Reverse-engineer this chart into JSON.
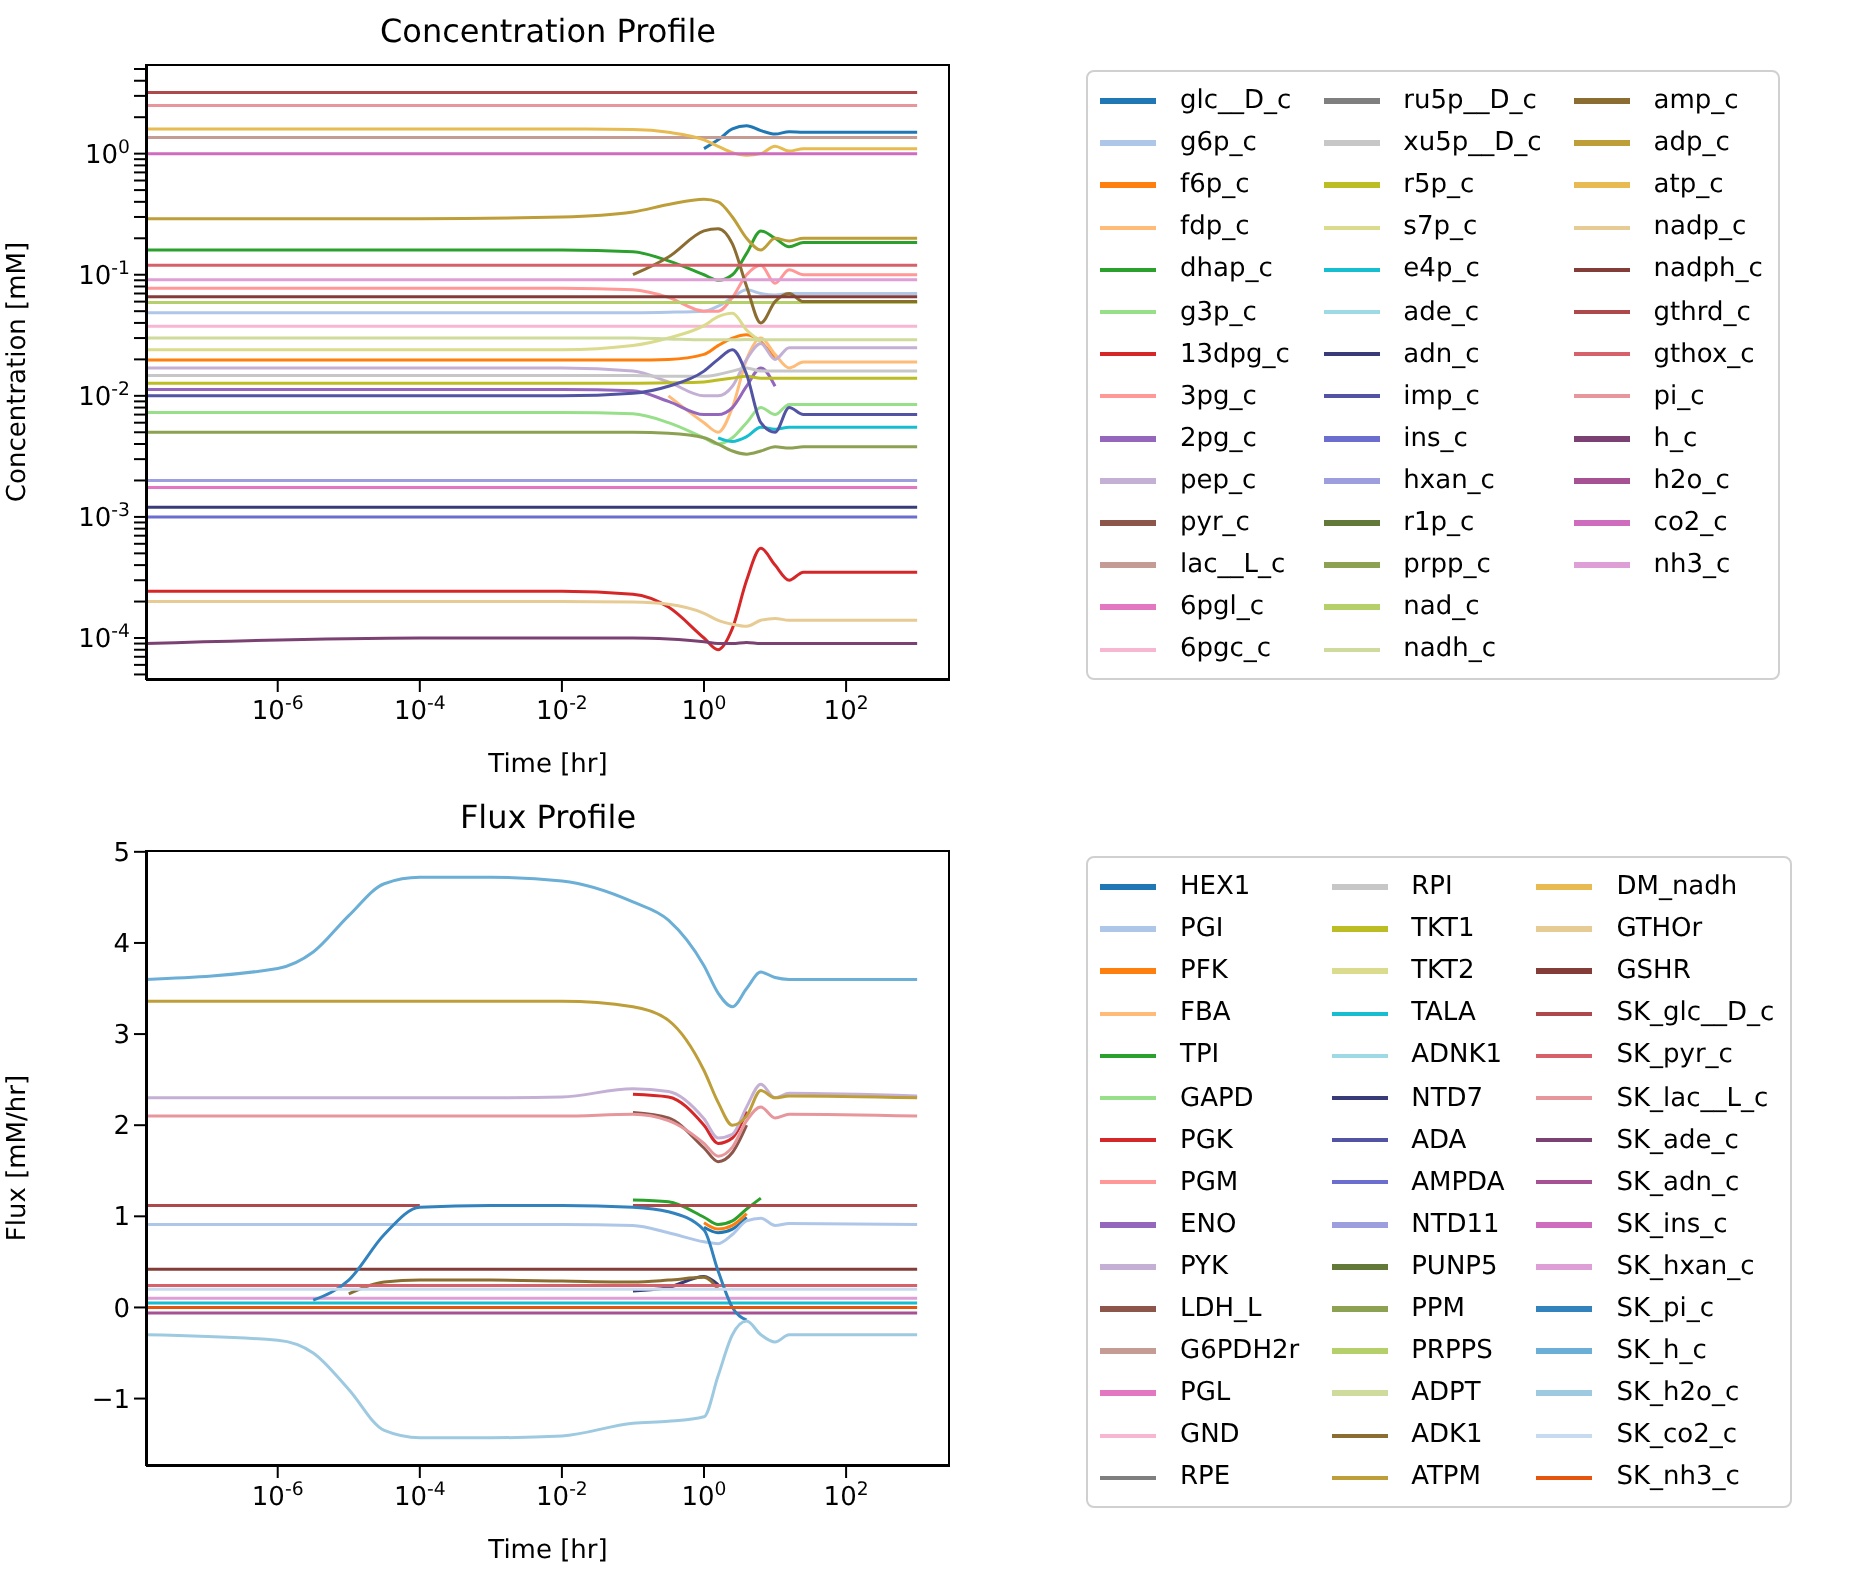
{
  "chart_data": [
    {
      "type": "line",
      "title": "Concentration Profile",
      "xlabel": "Time [hr]",
      "ylabel": "Concentration [mM]",
      "log": "xy",
      "legend": "right",
      "xlim": [
        1.4e-08,
        2900
      ],
      "xticks": [
        {
          "value": 1e-06,
          "label": "10$^{-6}$"
        },
        {
          "value": 0.0001,
          "label": "10$^{-4}$"
        },
        {
          "value": 0.01,
          "label": "10$^{-2}$"
        },
        {
          "value": 1,
          "label": "10$^{0}$"
        },
        {
          "value": 100,
          "label": "10$^{2}$"
        }
      ],
      "ylim": [
        4.5e-05,
        5.5
      ],
      "yticks": [
        {
          "value": 5e-05,
          "label": null
        },
        {
          "value": 6e-05,
          "label": null
        },
        {
          "value": 7e-05,
          "label": null
        },
        {
          "value": 8e-05,
          "label": null
        },
        {
          "value": 9e-05,
          "label": null
        },
        {
          "value": 0.0001,
          "label": "10$^{-4}$"
        },
        {
          "value": 0.0002,
          "label": null
        },
        {
          "value": 0.0003,
          "label": null
        },
        {
          "value": 0.0004,
          "label": null
        },
        {
          "value": 0.0005,
          "label": null
        },
        {
          "value": 0.0006,
          "label": null
        },
        {
          "value": 0.0007,
          "label": null
        },
        {
          "value": 0.0008,
          "label": null
        },
        {
          "value": 0.0009,
          "label": null
        },
        {
          "value": 0.001,
          "label": "10$^{-3}$"
        },
        {
          "value": 0.002,
          "label": null
        },
        {
          "value": 0.003,
          "label": null
        },
        {
          "value": 0.004,
          "label": null
        },
        {
          "value": 0.005,
          "label": null
        },
        {
          "value": 0.006,
          "label": null
        },
        {
          "value": 0.007,
          "label": null
        },
        {
          "value": 0.008,
          "label": null
        },
        {
          "value": 0.009,
          "label": null
        },
        {
          "value": 0.01,
          "label": "10$^{-2}$"
        },
        {
          "value": 0.02,
          "label": null
        },
        {
          "value": 0.03,
          "label": null
        },
        {
          "value": 0.04,
          "label": null
        },
        {
          "value": 0.05,
          "label": null
        },
        {
          "value": 0.06,
          "label": null
        },
        {
          "value": 0.07,
          "label": null
        },
        {
          "value": 0.08,
          "label": null
        },
        {
          "value": 0.09,
          "label": null
        },
        {
          "value": 0.1,
          "label": "10$^{-1}$"
        },
        {
          "value": 0.2,
          "label": null
        },
        {
          "value": 0.3,
          "label": null
        },
        {
          "value": 0.4,
          "label": null
        },
        {
          "value": 0.5,
          "label": null
        },
        {
          "value": 0.6,
          "label": null
        },
        {
          "value": 0.7,
          "label": null
        },
        {
          "value": 0.8,
          "label": null
        },
        {
          "value": 0.9,
          "label": null
        },
        {
          "value": 1,
          "label": "10$^{0}$"
        },
        {
          "value": 2,
          "label": null
        },
        {
          "value": 3,
          "label": null
        },
        {
          "value": 4,
          "label": null
        },
        {
          "value": 5,
          "label": null
        }
      ],
      "x": [
        1.4e-08,
        0.0001,
        0.01,
        0.1,
        0.316,
        1,
        1.58,
        2.51,
        3.98,
        6.31,
        10,
        15.8,
        25.1,
        1000
      ],
      "series": [
        {
          "name": "glc__D_c",
          "color": "#1f77b4",
          "values": [
            null,
            null,
            null,
            null,
            null,
            1.1,
            1.3,
            1.6,
            1.7,
            1.55,
            1.45,
            1.52,
            1.5,
            1.5
          ]
        },
        {
          "name": "g6p_c",
          "color": "#aec7e8",
          "values": [
            0.0486,
            0.0486,
            0.0486,
            0.0486,
            0.049,
            0.05,
            0.055,
            0.065,
            0.075,
            0.07,
            0.068,
            0.07,
            0.07,
            0.07
          ]
        },
        {
          "name": "f6p_c",
          "color": "#ff7f0e",
          "values": [
            0.0198,
            0.0198,
            0.0198,
            0.0198,
            0.02,
            0.022,
            0.026,
            0.03,
            0.032,
            0.028,
            0.02,
            null,
            null,
            null
          ]
        },
        {
          "name": "fdp_c",
          "color": "#ffbb78",
          "values": [
            null,
            null,
            null,
            null,
            0.01,
            0.006,
            0.005,
            0.008,
            0.02,
            0.03,
            0.022,
            0.017,
            0.019,
            0.019
          ]
        },
        {
          "name": "dhap_c",
          "color": "#2ca02c",
          "values": [
            0.16,
            0.16,
            0.16,
            0.155,
            0.13,
            0.1,
            0.09,
            0.1,
            0.15,
            0.23,
            0.2,
            0.17,
            0.185,
            0.185
          ]
        },
        {
          "name": "g3p_c",
          "color": "#98df8a",
          "values": [
            0.0073,
            0.0073,
            0.0073,
            0.0071,
            0.006,
            0.0045,
            0.004,
            0.0045,
            0.006,
            0.008,
            0.007,
            0.0085,
            0.0085,
            0.0085
          ]
        },
        {
          "name": "13dpg_c",
          "color": "#d62728",
          "values": [
            0.000243,
            0.000243,
            0.000243,
            0.00023,
            0.00018,
            0.0001,
            8e-05,
            0.00012,
            0.0003,
            0.00055,
            0.0004,
            0.0003,
            0.00035,
            0.00035
          ]
        },
        {
          "name": "3pg_c",
          "color": "#ff9896",
          "values": [
            0.0773,
            0.0773,
            0.0773,
            0.075,
            0.065,
            0.05,
            0.05,
            0.065,
            0.1,
            0.12,
            0.085,
            0.11,
            0.1,
            0.1
          ]
        },
        {
          "name": "2pg_c",
          "color": "#9467bd",
          "values": [
            0.0113,
            0.0113,
            0.0113,
            0.011,
            0.009,
            0.007,
            0.007,
            0.008,
            0.012,
            0.017,
            0.012,
            null,
            null,
            null
          ]
        },
        {
          "name": "pep_c",
          "color": "#c5b0d5",
          "values": [
            0.017,
            0.017,
            0.017,
            0.016,
            0.013,
            0.01,
            0.01,
            0.012,
            0.02,
            0.027,
            0.02,
            0.025,
            0.025,
            0.025
          ]
        },
        {
          "name": "pyr_c",
          "color": "#8c564b",
          "values": [
            null,
            null,
            null,
            null,
            null,
            null,
            null,
            null,
            null,
            null,
            null,
            null,
            null,
            null
          ]
        },
        {
          "name": "lac__L_c",
          "color": "#c49c94",
          "values": [
            1.36,
            1.36,
            1.36,
            1.36,
            1.36,
            1.36,
            1.36,
            1.36,
            1.36,
            1.36,
            1.36,
            1.36,
            1.36,
            1.36
          ]
        },
        {
          "name": "6pgl_c",
          "color": "#e377c2",
          "values": [
            0.00175,
            0.00175,
            0.00175,
            0.00175,
            0.00175,
            0.00175,
            0.00175,
            0.00175,
            0.00175,
            0.00175,
            0.00175,
            0.00175,
            0.00175,
            0.00175
          ]
        },
        {
          "name": "6pgc_c",
          "color": "#f7b6d2",
          "values": [
            0.0375,
            0.0375,
            0.0375,
            0.0375,
            0.0375,
            0.0375,
            0.0375,
            0.0375,
            0.0375,
            0.0375,
            0.0375,
            0.0375,
            0.0375,
            0.0375
          ]
        },
        {
          "name": "ru5p__D_c",
          "color": "#7f7f7f",
          "values": [
            null,
            null,
            null,
            null,
            null,
            null,
            null,
            null,
            null,
            null,
            null,
            null,
            null,
            null
          ]
        },
        {
          "name": "xu5p__D_c",
          "color": "#c7c7c7",
          "values": [
            0.0147,
            0.0147,
            0.0147,
            0.0147,
            0.0145,
            0.0145,
            0.015,
            0.016,
            0.017,
            0.016,
            0.016,
            0.016,
            0.016,
            0.016
          ]
        },
        {
          "name": "r5p_c",
          "color": "#bcbd22",
          "values": [
            0.0127,
            0.0127,
            0.0127,
            0.0127,
            0.0128,
            0.013,
            0.0135,
            0.014,
            0.0145,
            0.014,
            0.014,
            0.014,
            0.014,
            0.014
          ]
        },
        {
          "name": "s7p_c",
          "color": "#dbdb8d",
          "values": [
            0.024,
            0.024,
            0.024,
            0.026,
            0.03,
            0.038,
            0.045,
            0.048,
            0.035,
            0.028,
            null,
            null,
            null,
            null
          ]
        },
        {
          "name": "e4p_c",
          "color": "#17becf",
          "values": [
            null,
            null,
            null,
            null,
            null,
            null,
            0.0045,
            0.0042,
            0.0046,
            0.0055,
            0.0053,
            0.0055,
            0.0055,
            0.0055
          ]
        },
        {
          "name": "ade_c",
          "color": "#9edae5",
          "values": [
            null,
            null,
            null,
            null,
            null,
            null,
            null,
            null,
            null,
            null,
            null,
            null,
            null,
            null
          ]
        },
        {
          "name": "adn_c",
          "color": "#393b79",
          "values": [
            0.0012,
            0.0012,
            0.0012,
            0.0012,
            0.0012,
            0.0012,
            0.0012,
            0.0012,
            0.0012,
            0.0012,
            0.0012,
            0.0012,
            0.0012,
            0.0012
          ]
        },
        {
          "name": "imp_c",
          "color": "#5254a3",
          "values": [
            0.01,
            0.01,
            0.01,
            0.0105,
            0.012,
            0.016,
            0.02,
            0.024,
            0.015,
            0.006,
            0.005,
            0.008,
            0.007,
            0.007
          ]
        },
        {
          "name": "ins_c",
          "color": "#6b6ecf",
          "values": [
            0.001,
            0.001,
            0.001,
            0.001,
            0.001,
            0.001,
            0.001,
            0.001,
            0.001,
            0.001,
            0.001,
            0.001,
            0.001,
            0.001
          ]
        },
        {
          "name": "hxan_c",
          "color": "#9c9ede",
          "values": [
            0.002,
            0.002,
            0.002,
            0.002,
            0.002,
            0.002,
            0.002,
            0.002,
            0.002,
            0.002,
            0.002,
            0.002,
            0.002,
            0.002
          ]
        },
        {
          "name": "r1p_c",
          "color": "#637939",
          "values": [
            null,
            null,
            null,
            null,
            null,
            null,
            null,
            null,
            null,
            null,
            null,
            null,
            null,
            null
          ]
        },
        {
          "name": "prpp_c",
          "color": "#8ca252",
          "values": [
            0.005,
            0.005,
            0.005,
            0.005,
            0.0049,
            0.0045,
            0.004,
            0.0035,
            0.0033,
            0.0035,
            0.0038,
            0.0037,
            0.0038,
            0.0038
          ]
        },
        {
          "name": "nad_c",
          "color": "#b5cf6b",
          "values": [
            0.0589,
            0.0589,
            0.0589,
            0.0589,
            0.0589,
            0.0589,
            0.0589,
            0.0589,
            0.0589,
            0.0589,
            0.0589,
            0.0589,
            0.0589,
            0.0589
          ]
        },
        {
          "name": "nadh_c",
          "color": "#cedb9c",
          "values": [
            0.0301,
            0.0301,
            0.0301,
            0.03,
            0.0295,
            0.029,
            0.029,
            0.029,
            0.0292,
            0.029,
            0.029,
            0.029,
            0.029,
            0.029
          ]
        },
        {
          "name": "amp_c",
          "color": "#8c6d31",
          "values": [
            null,
            null,
            null,
            0.1,
            0.14,
            0.23,
            0.24,
            0.18,
            0.08,
            0.04,
            0.06,
            0.07,
            0.06,
            0.06
          ]
        },
        {
          "name": "adp_c",
          "color": "#bd9e39",
          "values": [
            0.29,
            0.29,
            0.3,
            0.33,
            0.38,
            0.42,
            0.4,
            0.3,
            0.2,
            0.16,
            0.2,
            0.19,
            0.2,
            0.2
          ]
        },
        {
          "name": "atp_c",
          "color": "#e7ba52",
          "values": [
            1.6,
            1.6,
            1.6,
            1.58,
            1.5,
            1.3,
            1.15,
            1.02,
            0.97,
            1.0,
            1.15,
            1.05,
            1.1,
            1.1
          ]
        },
        {
          "name": "nadp_c",
          "color": "#e7cb94",
          "values": [
            0.0002,
            0.0002,
            0.0002,
            0.000198,
            0.00019,
            0.00016,
            0.00014,
            0.00013,
            0.000125,
            0.00014,
            0.000145,
            0.00014,
            0.00014,
            0.00014
          ]
        },
        {
          "name": "nadph_c",
          "color": "#843c39",
          "values": [
            0.0658,
            0.0658,
            0.0658,
            0.0658,
            0.0658,
            0.0658,
            0.0658,
            0.0658,
            0.0658,
            0.0658,
            0.0658,
            0.0658,
            0.0658,
            0.0658
          ]
        },
        {
          "name": "gthrd_c",
          "color": "#ad494a",
          "values": [
            3.2,
            3.2,
            3.2,
            3.2,
            3.2,
            3.2,
            3.2,
            3.2,
            3.2,
            3.2,
            3.2,
            3.2,
            3.2,
            3.2
          ]
        },
        {
          "name": "gthox_c",
          "color": "#d6616b",
          "values": [
            0.12,
            0.12,
            0.12,
            0.12,
            0.12,
            0.12,
            0.12,
            0.12,
            0.12,
            0.12,
            0.12,
            0.12,
            0.12,
            0.12
          ]
        },
        {
          "name": "pi_c",
          "color": "#e7969c",
          "values": [
            2.5,
            2.5,
            2.5,
            2.5,
            2.5,
            2.5,
            2.5,
            2.5,
            2.5,
            2.5,
            2.5,
            2.5,
            2.5,
            2.5
          ]
        },
        {
          "name": "h_c",
          "color": "#7b4173",
          "values": [
            9e-05,
            0.0001,
            0.0001,
            0.0001,
            9.8e-05,
            9.3e-05,
            9e-05,
            9e-05,
            9.2e-05,
            9e-05,
            9e-05,
            9e-05,
            9e-05,
            9e-05
          ]
        },
        {
          "name": "h2o_c",
          "color": "#a55194",
          "values": [
            null,
            null,
            null,
            null,
            null,
            null,
            null,
            null,
            null,
            null,
            null,
            null,
            null,
            null
          ]
        },
        {
          "name": "co2_c",
          "color": "#ce6dbd",
          "values": [
            1,
            1,
            1,
            1,
            1,
            1,
            1,
            1,
            1,
            1,
            1,
            1,
            1,
            1
          ]
        },
        {
          "name": "nh3_c",
          "color": "#de9ed6",
          "values": [
            0.091,
            0.091,
            0.091,
            0.091,
            0.091,
            0.091,
            0.091,
            0.091,
            0.091,
            0.091,
            0.091,
            0.091,
            0.091,
            0.091
          ]
        }
      ]
    },
    {
      "type": "line",
      "title": "Flux Profile",
      "xlabel": "Time [hr]",
      "ylabel": "Flux [mM/hr]",
      "log": "x",
      "legend": "right",
      "xlim": [
        1.4e-08,
        2900
      ],
      "xticks": [
        {
          "value": 1e-06,
          "label": "10$^{-6}$"
        },
        {
          "value": 0.0001,
          "label": "10$^{-4}$"
        },
        {
          "value": 0.01,
          "label": "10$^{-2}$"
        },
        {
          "value": 1,
          "label": "10$^{0}$"
        },
        {
          "value": 100,
          "label": "10$^{2}$"
        }
      ],
      "ylim": [
        -1.74,
        5.02
      ],
      "yticks": [
        {
          "value": -1,
          "label": "−1"
        },
        0,
        1,
        2,
        3,
        4,
        5
      ],
      "x": [
        1.4e-08,
        1e-06,
        3.16e-06,
        1e-05,
        3.16e-05,
        0.0001,
        0.001,
        0.01,
        0.1,
        0.316,
        1,
        1.58,
        2.51,
        3.98,
        6.31,
        10,
        15.8,
        1000
      ],
      "series": [
        {
          "name": "HEX1",
          "color": "#1f77b4",
          "values": [
            null,
            null,
            null,
            null,
            null,
            null,
            null,
            null,
            null,
            null,
            0.88,
            0.82,
            0.86,
            0.99,
            null,
            null,
            null,
            null
          ]
        },
        {
          "name": "PGI",
          "color": "#aec7e8",
          "values": [
            0.91,
            0.91,
            0.91,
            0.91,
            0.91,
            0.91,
            0.91,
            0.91,
            0.9,
            0.82,
            0.72,
            0.7,
            0.8,
            0.95,
            0.98,
            0.9,
            0.92,
            0.91
          ]
        },
        {
          "name": "PFK",
          "color": "#ff7f0e",
          "values": [
            null,
            null,
            null,
            null,
            null,
            null,
            null,
            null,
            null,
            null,
            0.93,
            0.86,
            0.9,
            1.03,
            null,
            null,
            null,
            null
          ]
        },
        {
          "name": "FBA",
          "color": "#ffbb78",
          "values": [
            null,
            null,
            null,
            null,
            null,
            null,
            null,
            null,
            null,
            null,
            null,
            null,
            null,
            null,
            null,
            null,
            null,
            null
          ]
        },
        {
          "name": "TPI",
          "color": "#2ca02c",
          "values": [
            null,
            null,
            null,
            null,
            null,
            null,
            null,
            null,
            1.18,
            1.16,
            0.99,
            0.91,
            0.95,
            1.08,
            1.2,
            null,
            null,
            null
          ]
        },
        {
          "name": "GAPD",
          "color": "#98df8a",
          "values": [
            null,
            null,
            null,
            null,
            null,
            null,
            null,
            null,
            null,
            null,
            null,
            null,
            null,
            null,
            null,
            null,
            null,
            null
          ]
        },
        {
          "name": "PGK",
          "color": "#d62728",
          "values": [
            null,
            null,
            null,
            null,
            null,
            null,
            null,
            null,
            2.34,
            2.31,
            2.0,
            1.8,
            1.86,
            2.15,
            null,
            null,
            null,
            null
          ]
        },
        {
          "name": "PGM",
          "color": "#ff9896",
          "values": [
            null,
            null,
            null,
            null,
            null,
            null,
            null,
            null,
            null,
            null,
            null,
            null,
            null,
            null,
            null,
            null,
            null,
            null
          ]
        },
        {
          "name": "ENO",
          "color": "#9467bd",
          "values": [
            null,
            null,
            null,
            null,
            null,
            null,
            null,
            null,
            null,
            null,
            null,
            null,
            null,
            null,
            null,
            null,
            null,
            null
          ]
        },
        {
          "name": "PYK",
          "color": "#c5b0d5",
          "values": [
            2.3,
            2.3,
            2.3,
            2.3,
            2.3,
            2.3,
            2.3,
            2.31,
            2.4,
            2.37,
            2.07,
            1.86,
            1.9,
            2.2,
            2.45,
            2.3,
            2.35,
            2.32
          ]
        },
        {
          "name": "LDH_L",
          "color": "#8c564b",
          "values": [
            null,
            null,
            null,
            null,
            null,
            null,
            null,
            null,
            2.14,
            2.08,
            1.75,
            1.6,
            1.7,
            2.0,
            null,
            null,
            null,
            null
          ]
        },
        {
          "name": "G6PDH2r",
          "color": "#c49c94",
          "values": [
            null,
            null,
            null,
            null,
            null,
            null,
            null,
            null,
            null,
            null,
            null,
            null,
            null,
            null,
            null,
            null,
            null,
            null
          ]
        },
        {
          "name": "PGL",
          "color": "#e377c2",
          "values": [
            null,
            null,
            null,
            null,
            null,
            null,
            null,
            null,
            null,
            null,
            null,
            null,
            null,
            null,
            null,
            null,
            null,
            null
          ]
        },
        {
          "name": "GND",
          "color": "#f7b6d2",
          "values": [
            null,
            null,
            null,
            null,
            null,
            null,
            null,
            null,
            null,
            null,
            null,
            null,
            null,
            null,
            null,
            null,
            null,
            null
          ]
        },
        {
          "name": "RPE",
          "color": "#7f7f7f",
          "values": [
            null,
            null,
            null,
            null,
            null,
            null,
            null,
            null,
            null,
            null,
            null,
            null,
            null,
            null,
            null,
            null,
            null,
            null
          ]
        },
        {
          "name": "RPI",
          "color": "#c7c7c7",
          "values": [
            null,
            null,
            null,
            null,
            null,
            null,
            null,
            null,
            null,
            null,
            null,
            null,
            null,
            null,
            null,
            null,
            null,
            null
          ]
        },
        {
          "name": "TKT1",
          "color": "#bcbd22",
          "values": [
            null,
            null,
            null,
            null,
            null,
            null,
            null,
            null,
            null,
            null,
            null,
            null,
            null,
            null,
            null,
            null,
            null,
            null
          ]
        },
        {
          "name": "TKT2",
          "color": "#dbdb8d",
          "values": [
            null,
            null,
            null,
            null,
            null,
            null,
            null,
            null,
            null,
            null,
            null,
            null,
            null,
            null,
            null,
            null,
            null,
            null
          ]
        },
        {
          "name": "TALA",
          "color": "#17becf",
          "values": [
            0.05,
            0.05,
            0.05,
            0.05,
            0.05,
            0.05,
            0.05,
            0.05,
            0.05,
            0.05,
            0.05,
            0.05,
            0.05,
            0.05,
            0.05,
            0.05,
            0.05,
            0.05
          ]
        },
        {
          "name": "ADNK1",
          "color": "#9edae5",
          "values": [
            null,
            null,
            null,
            null,
            null,
            null,
            null,
            null,
            null,
            null,
            null,
            null,
            null,
            null,
            null,
            null,
            null,
            null
          ]
        },
        {
          "name": "NTD7",
          "color": "#393b79",
          "values": [
            null,
            null,
            null,
            null,
            null,
            null,
            null,
            null,
            0.18,
            0.22,
            0.34,
            0.25,
            null,
            null,
            null,
            null,
            null,
            null
          ]
        },
        {
          "name": "ADA",
          "color": "#5254a3",
          "values": [
            null,
            null,
            null,
            null,
            null,
            null,
            null,
            null,
            null,
            null,
            null,
            null,
            null,
            null,
            null,
            null,
            null,
            null
          ]
        },
        {
          "name": "AMPDA",
          "color": "#6b6ecf",
          "values": [
            null,
            null,
            null,
            null,
            null,
            null,
            null,
            null,
            null,
            null,
            null,
            null,
            null,
            null,
            null,
            null,
            null,
            null
          ]
        },
        {
          "name": "NTD11",
          "color": "#9c9ede",
          "values": [
            null,
            null,
            null,
            null,
            null,
            null,
            null,
            null,
            null,
            null,
            null,
            null,
            null,
            null,
            null,
            null,
            null,
            null
          ]
        },
        {
          "name": "PUNP5",
          "color": "#637939",
          "values": [
            null,
            null,
            null,
            null,
            null,
            null,
            null,
            null,
            null,
            null,
            null,
            null,
            null,
            null,
            null,
            null,
            null,
            null
          ]
        },
        {
          "name": "PPM",
          "color": "#8ca252",
          "values": [
            null,
            null,
            null,
            null,
            null,
            null,
            null,
            null,
            null,
            null,
            null,
            null,
            null,
            null,
            null,
            null,
            null,
            null
          ]
        },
        {
          "name": "PRPPS",
          "color": "#b5cf6b",
          "values": [
            null,
            null,
            null,
            null,
            null,
            null,
            null,
            null,
            null,
            null,
            null,
            null,
            null,
            null,
            null,
            null,
            null,
            null
          ]
        },
        {
          "name": "ADPT",
          "color": "#cedb9c",
          "values": [
            null,
            null,
            null,
            null,
            null,
            null,
            null,
            null,
            null,
            null,
            null,
            null,
            null,
            null,
            null,
            null,
            null,
            null
          ]
        },
        {
          "name": "ADK1",
          "color": "#8c6d31",
          "values": [
            null,
            null,
            null,
            0.15,
            0.28,
            0.3,
            0.3,
            0.29,
            0.28,
            0.3,
            0.33,
            0.2,
            null,
            null,
            null,
            null,
            null,
            null
          ]
        },
        {
          "name": "ATPM",
          "color": "#bd9e39",
          "values": [
            3.36,
            3.36,
            3.36,
            3.36,
            3.36,
            3.36,
            3.36,
            3.36,
            3.3,
            3.15,
            2.6,
            2.25,
            2.0,
            2.1,
            2.38,
            2.3,
            2.32,
            2.3
          ]
        },
        {
          "name": "DM_nadh",
          "color": "#e7ba52",
          "values": [
            null,
            null,
            null,
            null,
            null,
            null,
            null,
            null,
            null,
            null,
            null,
            null,
            null,
            null,
            null,
            null,
            null,
            null
          ]
        },
        {
          "name": "GTHOr",
          "color": "#e7cb94",
          "values": [
            null,
            null,
            null,
            null,
            null,
            null,
            null,
            null,
            null,
            null,
            null,
            null,
            null,
            null,
            null,
            null,
            null,
            null
          ]
        },
        {
          "name": "GSHR",
          "color": "#843c39",
          "values": [
            0.42,
            0.42,
            0.42,
            0.42,
            0.42,
            0.42,
            0.42,
            0.42,
            0.42,
            0.42,
            0.42,
            0.42,
            0.42,
            0.42,
            0.42,
            0.42,
            0.42,
            0.42
          ]
        },
        {
          "name": "SK_glc__D_c",
          "color": "#ad494a",
          "values": [
            1.12,
            1.12,
            1.12,
            1.12,
            1.12,
            1.12,
            null,
            null,
            1.12,
            1.12,
            1.12,
            1.12,
            1.12,
            1.12,
            1.12,
            1.12,
            1.12,
            1.12
          ]
        },
        {
          "name": "SK_pyr_c",
          "color": "#d6616b",
          "values": [
            0.24,
            0.24,
            0.24,
            0.24,
            0.24,
            0.24,
            0.24,
            0.24,
            0.24,
            0.24,
            0.24,
            0.24,
            0.24,
            0.24,
            0.24,
            0.24,
            0.24,
            0.24
          ]
        },
        {
          "name": "SK_lac__L_c",
          "color": "#e7969c",
          "values": [
            2.1,
            2.1,
            2.1,
            2.1,
            2.1,
            2.1,
            2.1,
            2.1,
            2.12,
            2.05,
            1.8,
            1.66,
            1.76,
            2.05,
            2.2,
            2.08,
            2.12,
            2.1
          ]
        },
        {
          "name": "SK_ade_c",
          "color": "#7b4173",
          "values": [
            null,
            null,
            null,
            null,
            null,
            null,
            null,
            null,
            null,
            null,
            null,
            null,
            null,
            null,
            null,
            null,
            null,
            null
          ]
        },
        {
          "name": "SK_adn_c",
          "color": "#a55194",
          "values": [
            -0.06,
            -0.06,
            -0.06,
            -0.06,
            -0.06,
            -0.06,
            -0.06,
            -0.06,
            -0.06,
            -0.06,
            -0.06,
            -0.06,
            -0.06,
            -0.06,
            -0.06,
            -0.06,
            -0.06,
            -0.06
          ]
        },
        {
          "name": "SK_ins_c",
          "color": "#ce6dbd",
          "values": [
            null,
            null,
            null,
            null,
            null,
            null,
            null,
            null,
            null,
            null,
            null,
            null,
            null,
            null,
            null,
            null,
            null,
            null
          ]
        },
        {
          "name": "SK_hxan_c",
          "color": "#de9ed6",
          "values": [
            0.1,
            0.1,
            0.1,
            0.1,
            0.1,
            0.1,
            0.1,
            0.1,
            0.1,
            0.1,
            0.1,
            0.1,
            0.1,
            0.1,
            0.1,
            0.1,
            0.1,
            0.1
          ]
        },
        {
          "name": "SK_pi_c",
          "color": "#3182bd",
          "values": [
            null,
            null,
            0.08,
            0.3,
            0.8,
            1.1,
            1.12,
            1.12,
            1.1,
            1.05,
            0.85,
            0.4,
            0,
            -0.14,
            null,
            null,
            null,
            null
          ]
        },
        {
          "name": "SK_h_c",
          "color": "#6baed6",
          "values": [
            3.6,
            3.72,
            3.9,
            4.3,
            4.65,
            4.72,
            4.72,
            4.68,
            4.45,
            4.25,
            3.75,
            3.45,
            3.3,
            3.5,
            3.68,
            3.62,
            3.6,
            3.6
          ]
        },
        {
          "name": "SK_h2o_c",
          "color": "#9ecae1",
          "values": [
            -0.3,
            -0.36,
            -0.5,
            -0.9,
            -1.35,
            -1.43,
            -1.43,
            -1.41,
            -1.27,
            -1.25,
            -1.2,
            -0.75,
            -0.3,
            -0.15,
            -0.3,
            -0.38,
            -0.3,
            -0.3
          ]
        },
        {
          "name": "SK_co2_c",
          "color": "#c6dbef",
          "values": [
            0.2,
            0.2,
            0.2,
            0.2,
            0.2,
            0.2,
            0.2,
            0.2,
            0.2,
            0.2,
            0.2,
            0.2,
            0.2,
            0.2,
            0.2,
            0.2,
            0.2,
            0.2
          ]
        },
        {
          "name": "SK_nh3_c",
          "color": "#e6550d",
          "values": [
            0,
            0,
            0,
            0,
            0,
            0,
            0,
            0,
            0,
            0,
            0,
            0,
            0,
            0,
            0,
            0,
            0,
            0
          ]
        }
      ]
    }
  ]
}
